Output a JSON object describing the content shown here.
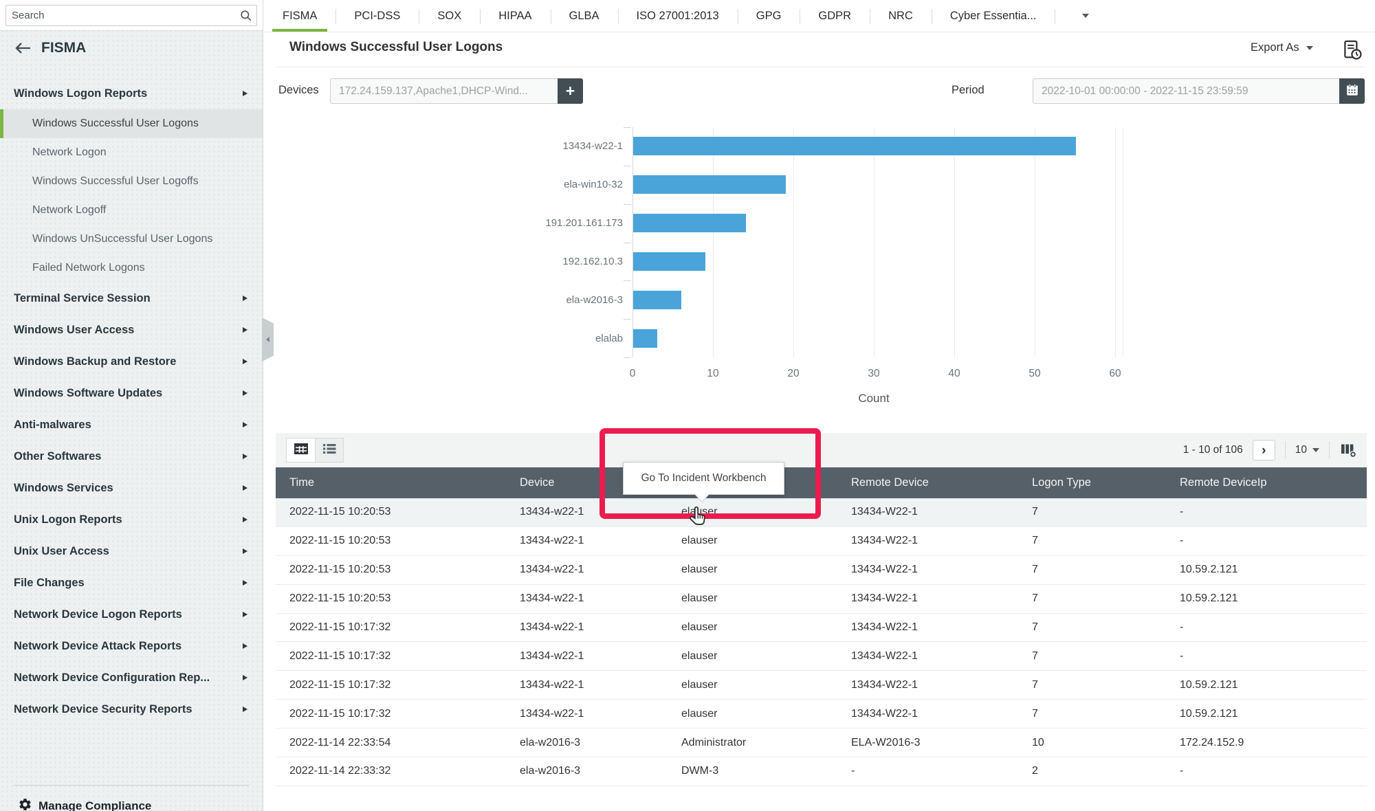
{
  "sidebar": {
    "search_placeholder": "Search",
    "title": "FISMA",
    "items": [
      {
        "label": "Windows Logon Reports",
        "type": "group",
        "chevron": true
      },
      {
        "label": "Windows Successful User Logons",
        "type": "sub",
        "selected": true
      },
      {
        "label": "Network Logon",
        "type": "sub"
      },
      {
        "label": "Windows Successful User Logoffs",
        "type": "sub"
      },
      {
        "label": "Network Logoff",
        "type": "sub"
      },
      {
        "label": "Windows UnSuccessful User Logons",
        "type": "sub"
      },
      {
        "label": "Failed Network Logons",
        "type": "sub"
      },
      {
        "label": "Terminal Service Session",
        "type": "group",
        "chevron": true
      },
      {
        "label": "Windows User Access",
        "type": "group",
        "chevron": true
      },
      {
        "label": "Windows Backup and Restore",
        "type": "group",
        "chevron": true
      },
      {
        "label": "Windows Software Updates",
        "type": "group",
        "chevron": true
      },
      {
        "label": "Anti-malwares",
        "type": "group",
        "chevron": true
      },
      {
        "label": "Other Softwares",
        "type": "group",
        "chevron": true
      },
      {
        "label": "Windows Services",
        "type": "group",
        "chevron": true
      },
      {
        "label": "Unix Logon Reports",
        "type": "group",
        "chevron": true
      },
      {
        "label": "Unix User Access",
        "type": "group",
        "chevron": true
      },
      {
        "label": "File Changes",
        "type": "group",
        "chevron": true
      },
      {
        "label": "Network Device Logon Reports",
        "type": "group",
        "chevron": true
      },
      {
        "label": "Network Device Attack Reports",
        "type": "group",
        "chevron": true
      },
      {
        "label": "Network Device Configuration Rep...",
        "type": "group",
        "chevron": true
      },
      {
        "label": "Network Device Security Reports",
        "type": "group",
        "chevron": true
      }
    ],
    "footer_label": "Manage Compliance"
  },
  "tabs": {
    "items": [
      "FISMA",
      "PCI-DSS",
      "SOX",
      "HIPAA",
      "GLBA",
      "ISO 27001:2013",
      "GPG",
      "GDPR",
      "NRC",
      "Cyber Essentia..."
    ],
    "active": "FISMA"
  },
  "header": {
    "title": "Windows Successful User Logons",
    "export_label": "Export As"
  },
  "filters": {
    "devices_label": "Devices",
    "devices_value": "172.24.159.137,Apache1,DHCP-Wind...",
    "add_button": "+",
    "period_label": "Period",
    "period_value": "2022-10-01 00:00:00 - 2022-11-15 23:59:59"
  },
  "chart_data": {
    "type": "bar",
    "orientation": "horizontal",
    "title": "",
    "categories": [
      "13434-w22-1",
      "ela-win10-32",
      "191.201.161.173",
      "192.162.10.3",
      "ela-w2016-3",
      "elalab"
    ],
    "values": [
      55,
      19,
      14,
      9,
      6,
      3
    ],
    "xlabel": "Count",
    "ylabel": "",
    "xticks": [
      0,
      10,
      20,
      30,
      40,
      50,
      60
    ],
    "xlim": [
      0,
      60
    ],
    "grid": true,
    "bar_color": "#4aa4da"
  },
  "tooltip": {
    "text": "Go To Incident Workbench"
  },
  "table": {
    "pagination": {
      "range_text": "1 - 10 of 106",
      "next_symbol": "›",
      "page_size": "10"
    },
    "columns": [
      "Time",
      "Device",
      "",
      "Remote Device",
      "Logon Type",
      "Remote DeviceIp"
    ],
    "rows": [
      [
        "2022-11-15 10:20:53",
        "13434-w22-1",
        "elauser",
        "13434-W22-1",
        "7",
        "-"
      ],
      [
        "2022-11-15 10:20:53",
        "13434-w22-1",
        "elauser",
        "13434-W22-1",
        "7",
        "-"
      ],
      [
        "2022-11-15 10:20:53",
        "13434-w22-1",
        "elauser",
        "13434-W22-1",
        "7",
        "10.59.2.121"
      ],
      [
        "2022-11-15 10:20:53",
        "13434-w22-1",
        "elauser",
        "13434-W22-1",
        "7",
        "10.59.2.121"
      ],
      [
        "2022-11-15 10:17:32",
        "13434-w22-1",
        "elauser",
        "13434-W22-1",
        "7",
        "-"
      ],
      [
        "2022-11-15 10:17:32",
        "13434-w22-1",
        "elauser",
        "13434-W22-1",
        "7",
        "-"
      ],
      [
        "2022-11-15 10:17:32",
        "13434-w22-1",
        "elauser",
        "13434-W22-1",
        "7",
        "10.59.2.121"
      ],
      [
        "2022-11-15 10:17:32",
        "13434-w22-1",
        "elauser",
        "13434-W22-1",
        "7",
        "10.59.2.121"
      ],
      [
        "2022-11-14 22:33:54",
        "ela-w2016-3",
        "Administrator",
        "ELA-W2016-3",
        "10",
        "172.24.152.9"
      ],
      [
        "2022-11-14 22:33:32",
        "ela-w2016-3",
        "DWM-3",
        "-",
        "2",
        "-"
      ]
    ]
  },
  "colors": {
    "accent_green": "#7cb43e",
    "bar_blue": "#4aa4da",
    "table_header": "#566069",
    "annotation_red": "#ec1b4e",
    "dark_button": "#424d54"
  }
}
